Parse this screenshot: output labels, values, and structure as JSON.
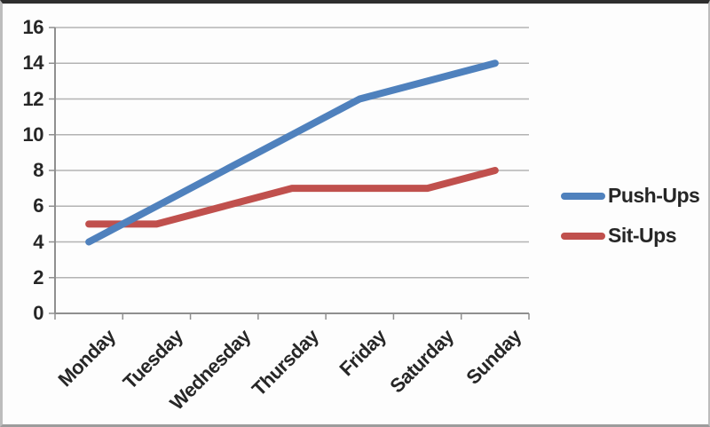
{
  "chart_data": {
    "type": "line",
    "categories": [
      "Monday",
      "Tuesday",
      "Wednesday",
      "Thursday",
      "Friday",
      "Saturday",
      "Sunday"
    ],
    "series": [
      {
        "name": "Push-Ups",
        "color": "#4f81bd",
        "values": [
          4,
          6,
          8,
          10,
          12,
          13,
          14
        ]
      },
      {
        "name": "Sit-Ups",
        "color": "#c0504d",
        "values": [
          5,
          5,
          6,
          7,
          7,
          7,
          8
        ]
      }
    ],
    "yticks": [
      0,
      2,
      4,
      6,
      8,
      10,
      12,
      14,
      16
    ],
    "ylim": [
      0,
      16
    ],
    "grid": true,
    "legend_position": "right",
    "style": {
      "gridline_color": "#b3b3b3",
      "axis_color": "#8f8f8f",
      "text_color": "#262626",
      "background_color": "#fdfdfd"
    }
  }
}
